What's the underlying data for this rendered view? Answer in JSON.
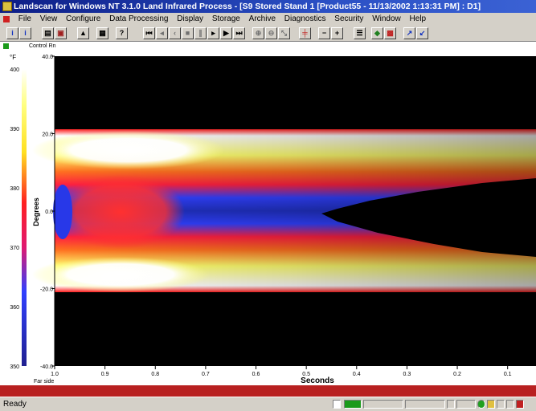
{
  "window": {
    "title": "Landscan for Windows NT 3.1.0  Land Infrared Process - [S9 Stored Stand 1 [Product55 - 11/13/2002 1:13:31 PM] : D1]"
  },
  "menu": {
    "items": [
      "File",
      "View",
      "Configure",
      "Data Processing",
      "Display",
      "Storage",
      "Archive",
      "Diagnostics",
      "Security",
      "Window",
      "Help"
    ]
  },
  "toolbar": {
    "buttons": [
      "info-icon",
      "info-icon",
      "print-icon",
      "print-preview-icon",
      "stand-icon",
      "network-icon",
      "help-icon",
      "first-frame-icon",
      "step-back-icon",
      "prev-icon",
      "stop-icon",
      "pause-icon",
      "play-icon",
      "fast-forward-icon",
      "last-frame-icon",
      "zoom-icon",
      "zoom-out-icon",
      "cursor-icon",
      "marker-icon",
      "minus-icon",
      "plus-icon",
      "list-icon",
      "color-icon",
      "image-icon",
      "diagonal-arrow-icon",
      "check-icon"
    ]
  },
  "status_strip": {
    "label": "Control Rn"
  },
  "colorbar": {
    "unit": "°F",
    "ticks": [
      "400",
      "390",
      "380",
      "370",
      "360",
      "350"
    ]
  },
  "chart": {
    "ylabel": "Degrees",
    "xlabel": "Seconds",
    "x_far_label": "Far side",
    "colors": {
      "background": "#000000",
      "hot": "#ffffff",
      "warm": "#ffff40",
      "mid": "#ff2020",
      "cool": "#2040ff"
    }
  },
  "chart_data": {
    "type": "heatmap",
    "xlabel": "Seconds",
    "ylabel": "Degrees",
    "x_ticks": [
      "1.0",
      "0.9",
      "0.8",
      "0.7",
      "0.6",
      "0.5",
      "0.4",
      "0.3",
      "0.2",
      "0.1"
    ],
    "y_ticks": [
      "40.0",
      "20.0",
      "0.0",
      "-20.0",
      "-40.0"
    ],
    "xlim": [
      1.0,
      0.05
    ],
    "ylim": [
      -40,
      40
    ],
    "colorbar": {
      "unit": "°F",
      "range": [
        350,
        400
      ],
      "ticks": [
        400,
        390,
        380,
        370,
        360,
        350
      ]
    }
  },
  "statusbar": {
    "text": "Ready"
  }
}
